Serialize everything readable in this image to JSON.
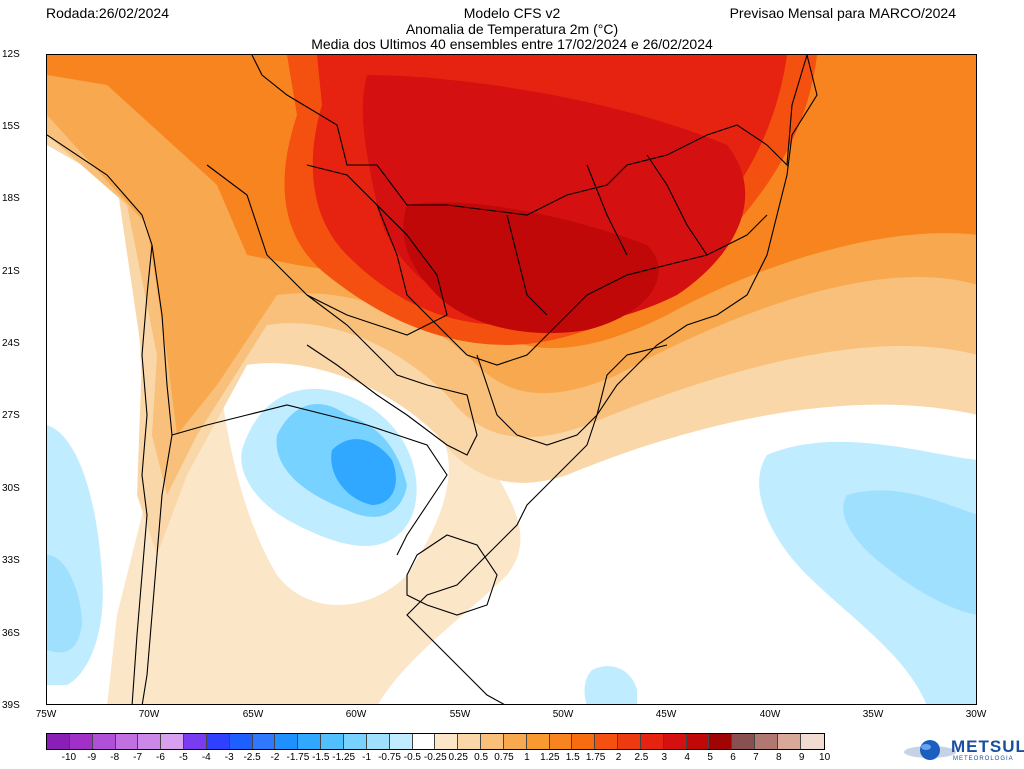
{
  "header": {
    "run_date": "Rodada:26/02/2024",
    "model": "Modelo CFS v2",
    "variable": "Anomalia de Temperatura 2m (°C)",
    "ensemble": "Media dos Ultimos 40 ensembles entre 17/02/2024 e 26/02/2024",
    "forecast": "Previsao Mensal para MARCO/2024"
  },
  "map": {
    "lat_labels": [
      "12S",
      "15S",
      "18S",
      "21S",
      "24S",
      "27S",
      "30S",
      "33S",
      "36S",
      "39S"
    ],
    "lon_labels": [
      "75W",
      "70W",
      "65W",
      "60W",
      "55W",
      "50W",
      "45W",
      "40W",
      "35W",
      "30W"
    ]
  },
  "colorbar": {
    "labels": [
      "-10",
      "-9",
      "-8",
      "-7",
      "-6",
      "-5",
      "-4",
      "-3",
      "-2.5",
      "-2",
      "-1.75",
      "-1.5",
      "-1.25",
      "-1",
      "-0.75",
      "-0.5",
      "-0.25",
      "0.25",
      "0.5",
      "0.75",
      "1",
      "1.25",
      "1.5",
      "1.75",
      "2",
      "2.5",
      "3",
      "4",
      "5",
      "6",
      "7",
      "8",
      "9",
      "10"
    ],
    "colors": [
      "#8a1fb8",
      "#a030c8",
      "#b04fd8",
      "#c070e0",
      "#cc88e8",
      "#d8a0ee",
      "#7a3cf0",
      "#3040ff",
      "#1e60ff",
      "#2f78ff",
      "#1e90ff",
      "#30a8ff",
      "#50c0ff",
      "#78d2ff",
      "#9fe0ff",
      "#c0ecff",
      "#ffffff",
      "#fbe6c8",
      "#fad7a8",
      "#f8c07a",
      "#f8a84e",
      "#f89a30",
      "#f88420",
      "#f86c10",
      "#f45010",
      "#ee3a10",
      "#e62210",
      "#d41010",
      "#c00808",
      "#a00404",
      "#885050",
      "#b07870",
      "#d8a898",
      "#f0dcd0"
    ]
  },
  "logo": {
    "name": "METSUL",
    "subtitle": "METEOROLOGIA"
  },
  "colors": {
    "land_border": "#000000",
    "neg_light": "#c0ecff",
    "neg_mid": "#78d2ff",
    "neg_strong": "#30a8ff",
    "pos_025": "#fbe6c8",
    "pos_05": "#fad7a8",
    "pos_075": "#f8c07a",
    "pos_1": "#f8a84e",
    "pos_15": "#f88420",
    "pos_2": "#f45010",
    "pos_3": "#e62210",
    "pos_4": "#d41010",
    "pos_5": "#c00808"
  }
}
